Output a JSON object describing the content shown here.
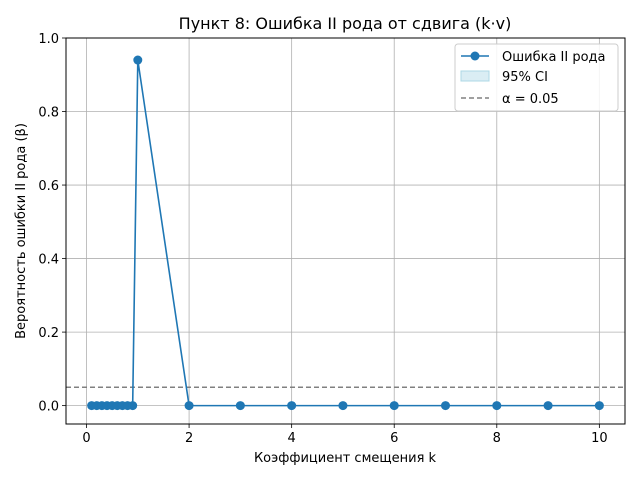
{
  "chart_data": {
    "type": "line",
    "title": "Пункт 8: Ошибка II рода от сдвига (k·v)",
    "xlabel": "Коэффициент смещения k",
    "ylabel": "Вероятность ошибки II рода (β)",
    "xlim": [
      -0.4,
      10.5
    ],
    "ylim": [
      -0.05,
      1.0
    ],
    "xticks": [
      0,
      2,
      4,
      6,
      8,
      10
    ],
    "yticks": [
      0.0,
      0.2,
      0.4,
      0.6,
      0.8,
      1.0
    ],
    "xtick_labels": [
      "0",
      "2",
      "4",
      "6",
      "8",
      "10"
    ],
    "ytick_labels": [
      "0.0",
      "0.2",
      "0.4",
      "0.6",
      "0.8",
      "1.0"
    ],
    "grid": true,
    "legend_position": "top-right",
    "series": [
      {
        "name": "Ошибка II рода",
        "color": "#1f77b4",
        "marker": "circle",
        "x": [
          0.1,
          0.2,
          0.3,
          0.4,
          0.5,
          0.6,
          0.7,
          0.8,
          0.9,
          1.0,
          2,
          3,
          4,
          5,
          6,
          7,
          8,
          9,
          10
        ],
        "y": [
          0,
          0,
          0,
          0,
          0,
          0,
          0,
          0,
          0,
          0.94,
          0,
          0,
          0,
          0,
          0,
          0,
          0,
          0,
          0
        ]
      }
    ],
    "ci_band": {
      "name": "95% CI",
      "color": "#add8e6"
    },
    "reference_line": {
      "name": "α = 0.05",
      "y": 0.05,
      "color": "#808080",
      "style": "dashed"
    }
  }
}
